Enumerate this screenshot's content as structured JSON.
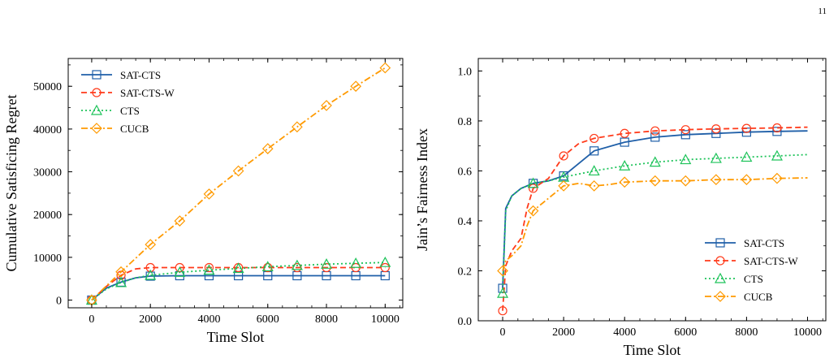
{
  "page_number": "11",
  "chart_data": [
    {
      "type": "line",
      "xlabel": "Time Slot",
      "ylabel": "Cumulative Satisficing Regret",
      "xlim": [
        -800,
        10600
      ],
      "ylim": [
        -1800,
        56500
      ],
      "xticks": [
        "0",
        "2000",
        "4000",
        "6000",
        "8000",
        "10000"
      ],
      "xtick_values": [
        0,
        2000,
        4000,
        6000,
        8000,
        10000
      ],
      "yticks": [
        "0",
        "10000",
        "20000",
        "30000",
        "40000",
        "50000"
      ],
      "ytick_values": [
        0,
        10000,
        20000,
        30000,
        40000,
        50000
      ],
      "legend_position": "top-left",
      "series": [
        {
          "name": "SAT-CTS",
          "color": "#1f5fa8",
          "dash": "solid",
          "marker": "square",
          "x": [
            0,
            500,
            1000,
            1500,
            2000,
            3000,
            4000,
            5000,
            6000,
            7000,
            8000,
            9000,
            10000
          ],
          "y": [
            0,
            2800,
            4200,
            5200,
            5600,
            5700,
            5700,
            5700,
            5700,
            5700,
            5700,
            5700,
            5700
          ],
          "marker_x": [
            0,
            1000,
            2000,
            3000,
            4000,
            5000,
            6000,
            7000,
            8000,
            9000,
            10000
          ]
        },
        {
          "name": "SAT-CTS-W",
          "color": "#ff3a1a",
          "dash": "dashed",
          "marker": "circle",
          "x": [
            0,
            500,
            1000,
            1500,
            2000,
            3000,
            4000,
            5000,
            6000,
            7000,
            8000,
            9000,
            10000
          ],
          "y": [
            0,
            3200,
            5800,
            7300,
            7600,
            7600,
            7600,
            7600,
            7600,
            7600,
            7600,
            7600,
            7600
          ],
          "marker_x": [
            0,
            1000,
            2000,
            3000,
            4000,
            5000,
            6000,
            7000,
            8000,
            9000,
            10000
          ]
        },
        {
          "name": "CTS",
          "color": "#1ec35a",
          "dash": "dotted",
          "marker": "triangle",
          "x": [
            0,
            500,
            1000,
            1500,
            2000,
            3000,
            4000,
            5000,
            6000,
            7000,
            8000,
            9000,
            10000
          ],
          "y": [
            0,
            2600,
            4100,
            5200,
            5800,
            6500,
            7000,
            7400,
            7800,
            8100,
            8400,
            8600,
            8800
          ],
          "marker_x": [
            0,
            1000,
            2000,
            3000,
            4000,
            5000,
            6000,
            7000,
            8000,
            9000,
            10000
          ]
        },
        {
          "name": "CUCB",
          "color": "#ff9a00",
          "dash": "dashdot",
          "marker": "diamond",
          "x": [
            0,
            1000,
            2000,
            3000,
            4000,
            5000,
            6000,
            7000,
            8000,
            9000,
            10000
          ],
          "y": [
            0,
            6600,
            13000,
            18500,
            24800,
            30200,
            35400,
            40500,
            45500,
            50000,
            54300
          ],
          "marker_x": [
            0,
            1000,
            2000,
            3000,
            4000,
            5000,
            6000,
            7000,
            8000,
            9000,
            10000
          ]
        }
      ]
    },
    {
      "type": "line",
      "xlabel": "Time Slot",
      "ylabel": "Jain’s Fairness Index",
      "xlim": [
        -800,
        10600
      ],
      "ylim": [
        0.0,
        1.05
      ],
      "xticks": [
        "0",
        "2000",
        "4000",
        "6000",
        "8000",
        "10000"
      ],
      "xtick_values": [
        0,
        2000,
        4000,
        6000,
        8000,
        10000
      ],
      "yticks": [
        "0.0",
        "0.2",
        "0.4",
        "0.6",
        "0.8",
        "1.0"
      ],
      "ytick_values": [
        0.0,
        0.2,
        0.4,
        0.6,
        0.8,
        1.0
      ],
      "legend_position": "bottom-right",
      "series": [
        {
          "name": "SAT-CTS",
          "color": "#1f5fa8",
          "dash": "solid",
          "marker": "square",
          "x": [
            0,
            100,
            300,
            600,
            1000,
            1500,
            2000,
            2500,
            3000,
            4000,
            5000,
            6000,
            7000,
            8000,
            9000,
            10000
          ],
          "y": [
            0.13,
            0.45,
            0.5,
            0.53,
            0.55,
            0.56,
            0.58,
            0.63,
            0.68,
            0.715,
            0.735,
            0.745,
            0.75,
            0.755,
            0.758,
            0.76
          ],
          "marker_x": [
            0,
            1000,
            2000,
            3000,
            4000,
            5000,
            6000,
            7000,
            8000,
            9000
          ]
        },
        {
          "name": "SAT-CTS-W",
          "color": "#ff3a1a",
          "dash": "dashed",
          "marker": "circle",
          "x": [
            0,
            100,
            300,
            600,
            800,
            1000,
            1500,
            2000,
            2500,
            3000,
            4000,
            5000,
            6000,
            7000,
            8000,
            9000,
            10000
          ],
          "y": [
            0.04,
            0.22,
            0.28,
            0.33,
            0.45,
            0.53,
            0.57,
            0.66,
            0.71,
            0.73,
            0.75,
            0.76,
            0.765,
            0.768,
            0.77,
            0.772,
            0.775
          ],
          "marker_x": [
            0,
            1000,
            2000,
            3000,
            4000,
            5000,
            6000,
            7000,
            8000,
            9000
          ]
        },
        {
          "name": "CTS",
          "color": "#1ec35a",
          "dash": "dotted",
          "marker": "triangle",
          "x": [
            0,
            100,
            300,
            600,
            1000,
            1500,
            2000,
            3000,
            4000,
            5000,
            6000,
            7000,
            8000,
            9000,
            10000
          ],
          "y": [
            0.11,
            0.44,
            0.5,
            0.53,
            0.55,
            0.56,
            0.575,
            0.6,
            0.62,
            0.635,
            0.645,
            0.65,
            0.655,
            0.66,
            0.665
          ],
          "marker_x": [
            0,
            1000,
            2000,
            3000,
            4000,
            5000,
            6000,
            7000,
            8000,
            9000
          ]
        },
        {
          "name": "CUCB",
          "color": "#ff9a00",
          "dash": "dashdot",
          "marker": "diamond",
          "x": [
            0,
            100,
            300,
            600,
            800,
            1000,
            1300,
            1600,
            2000,
            2500,
            3000,
            3500,
            4000,
            5000,
            6000,
            7000,
            8000,
            9000,
            10000
          ],
          "y": [
            0.2,
            0.24,
            0.26,
            0.3,
            0.38,
            0.44,
            0.47,
            0.5,
            0.54,
            0.55,
            0.54,
            0.545,
            0.555,
            0.56,
            0.56,
            0.565,
            0.565,
            0.57,
            0.572
          ],
          "marker_x": [
            0,
            1000,
            2000,
            3000,
            4000,
            5000,
            6000,
            7000,
            8000,
            9000
          ]
        }
      ]
    }
  ]
}
